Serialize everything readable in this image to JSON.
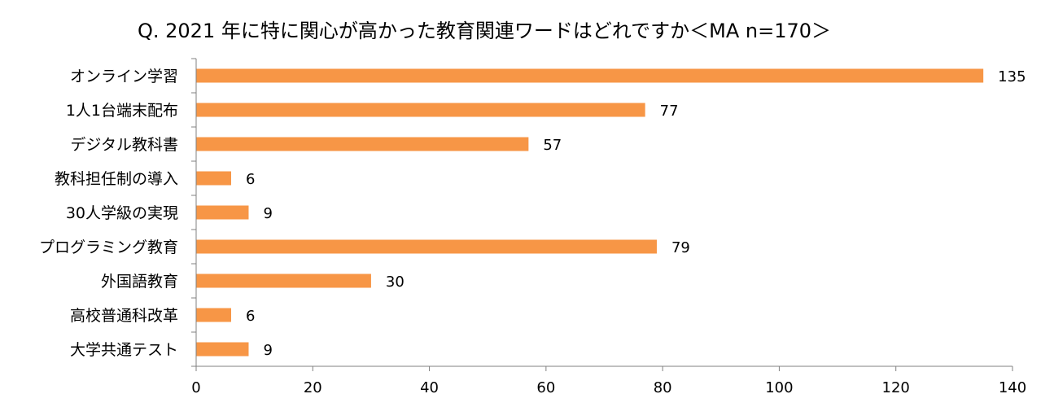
{
  "chart_data": {
    "type": "bar",
    "orientation": "horizontal",
    "title": "Q. 2021 年に特に関心が高かった教育関連ワードはどれですか＜MA n=170＞",
    "categories": [
      "オンライン学習",
      "1人1台端末配布",
      "デジタル教科書",
      "教科担任制の導入",
      "30人学級の実現",
      "プログラミング教育",
      "外国語教育",
      "高校普通科改革",
      "大学共通テスト"
    ],
    "values": [
      135,
      77,
      57,
      6,
      9,
      79,
      30,
      6,
      9
    ],
    "xlim": [
      0,
      140
    ],
    "xticks": [
      0,
      20,
      40,
      60,
      80,
      100,
      120,
      140
    ],
    "bar_color": "#F79646",
    "grid": false,
    "legend": "none"
  }
}
